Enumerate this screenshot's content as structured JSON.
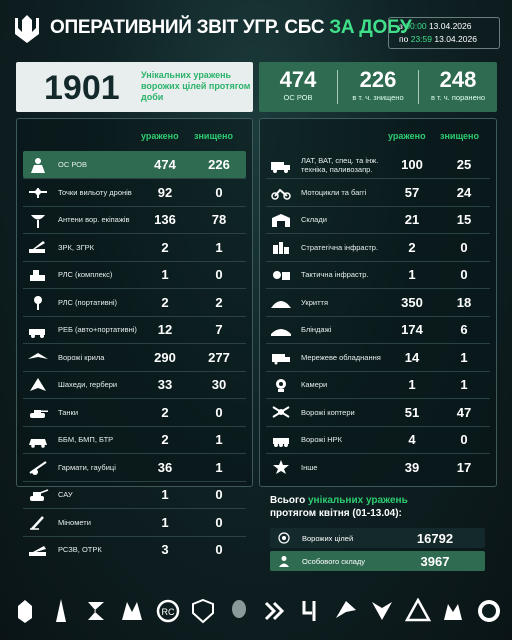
{
  "header": {
    "title_main": "ОПЕРАТИВНИЙ ЗВІТ УГР. СБС",
    "title_accent": "ЗА ДОБУ",
    "date_from_prefix": "з",
    "date_from_time": "00:00",
    "date_from_date": "13.04.2026",
    "date_to_prefix": "по",
    "date_to_time": "23:59",
    "date_to_date": "13.04.2026"
  },
  "summary": {
    "unique_total": "1901",
    "unique_text": "Унікальних уражень ворожих цілей протягом доби",
    "os_rov": {
      "value": "474",
      "label": "ОС РОВ"
    },
    "killed": {
      "value": "226",
      "label": "в т. ч. знищено"
    },
    "wounded": {
      "value": "248",
      "label": "в т. ч. поранено"
    }
  },
  "columns": {
    "hit": "уражено",
    "destroyed": "знищено"
  },
  "left_rows": [
    {
      "icon": "personnel-icon",
      "label": "ОС РОВ",
      "hit": "474",
      "destroyed": "226"
    },
    {
      "icon": "drone-launch-point-icon",
      "label": "Точки вильоту дронів",
      "hit": "92",
      "destroyed": "0"
    },
    {
      "icon": "antenna-icon",
      "label": "Антени вор. екіпажів",
      "hit": "136",
      "destroyed": "78"
    },
    {
      "icon": "sam-launcher-icon",
      "label": "ЗРК, ЗГРК",
      "hit": "2",
      "destroyed": "1"
    },
    {
      "icon": "radar-complex-icon",
      "label": "РЛС (комплекс)",
      "hit": "1",
      "destroyed": "0"
    },
    {
      "icon": "radar-portable-icon",
      "label": "РЛС (портативні)",
      "hit": "2",
      "destroyed": "2"
    },
    {
      "icon": "ew-vehicle-icon",
      "label": "РЕБ (авто+портативні)",
      "hit": "12",
      "destroyed": "7"
    },
    {
      "icon": "wing-icon",
      "label": "Ворожі крила",
      "hit": "290",
      "destroyed": "277"
    },
    {
      "icon": "shahed-icon",
      "label": "Шахеди, гербери",
      "hit": "33",
      "destroyed": "30"
    },
    {
      "icon": "tank-icon",
      "label": "Танки",
      "hit": "2",
      "destroyed": "0"
    },
    {
      "icon": "apc-icon",
      "label": "ББМ, БМП, БТР",
      "hit": "2",
      "destroyed": "1"
    },
    {
      "icon": "howitzer-icon",
      "label": "Гармати, гаубиці",
      "hit": "36",
      "destroyed": "1"
    },
    {
      "icon": "spg-icon",
      "label": "САУ",
      "hit": "1",
      "destroyed": "0"
    },
    {
      "icon": "mortar-icon",
      "label": "Міномети",
      "hit": "1",
      "destroyed": "0"
    },
    {
      "icon": "mlrs-icon",
      "label": "РСЗВ, ОТРК",
      "hit": "3",
      "destroyed": "0"
    }
  ],
  "right_rows": [
    {
      "icon": "truck-icon",
      "label": "ЛАТ, ВАТ, спец. та інж. техніка, паливозапр.",
      "hit": "100",
      "destroyed": "25"
    },
    {
      "icon": "motorcycle-icon",
      "label": "Мотоцикли та баггі",
      "hit": "57",
      "destroyed": "24"
    },
    {
      "icon": "warehouse-icon",
      "label": "Склади",
      "hit": "21",
      "destroyed": "15"
    },
    {
      "icon": "strategic-infra-icon",
      "label": "Стратегічна інфрастр.",
      "hit": "2",
      "destroyed": "0"
    },
    {
      "icon": "tactical-infra-icon",
      "label": "Тактична інфрастр.",
      "hit": "1",
      "destroyed": "0"
    },
    {
      "icon": "shelter-icon",
      "label": "Укриття",
      "hit": "350",
      "destroyed": "18"
    },
    {
      "icon": "dugout-icon",
      "label": "Бліндажі",
      "hit": "174",
      "destroyed": "6"
    },
    {
      "icon": "network-equipment-icon",
      "label": "Мережеве обладнання",
      "hit": "14",
      "destroyed": "1"
    },
    {
      "icon": "camera-icon",
      "label": "Камери",
      "hit": "1",
      "destroyed": "1"
    },
    {
      "icon": "quadcopter-icon",
      "label": "Ворожі коптери",
      "hit": "51",
      "destroyed": "47"
    },
    {
      "icon": "ground-robot-icon",
      "label": "Ворожі НРК",
      "hit": "4",
      "destroyed": "0"
    },
    {
      "icon": "other-icon",
      "label": "Інше",
      "hit": "39",
      "destroyed": "17"
    }
  ],
  "totals": {
    "heading_part1": "Всього",
    "heading_accent": "унікальних уражень",
    "heading_part2": "протягом квітня (01-13.04):",
    "targets": {
      "label": "Ворожих цілей",
      "value": "16792"
    },
    "personnel": {
      "label": "Особового складу",
      "value": "3967"
    }
  },
  "footer_icons": [
    "unit-emblem-1-icon",
    "unit-emblem-2-icon",
    "unit-emblem-3-icon",
    "unit-emblem-4-icon",
    "unit-emblem-5-icon",
    "unit-emblem-6-icon",
    "unit-emblem-7-icon",
    "unit-emblem-8-icon",
    "unit-emblem-9-icon",
    "unit-emblem-10-icon",
    "unit-emblem-11-icon",
    "unit-emblem-12-icon",
    "unit-emblem-13-icon",
    "unit-emblem-14-icon"
  ],
  "colors": {
    "accent": "#2ecc71",
    "highlight": "#2f6b51",
    "background": "#0f2224"
  }
}
